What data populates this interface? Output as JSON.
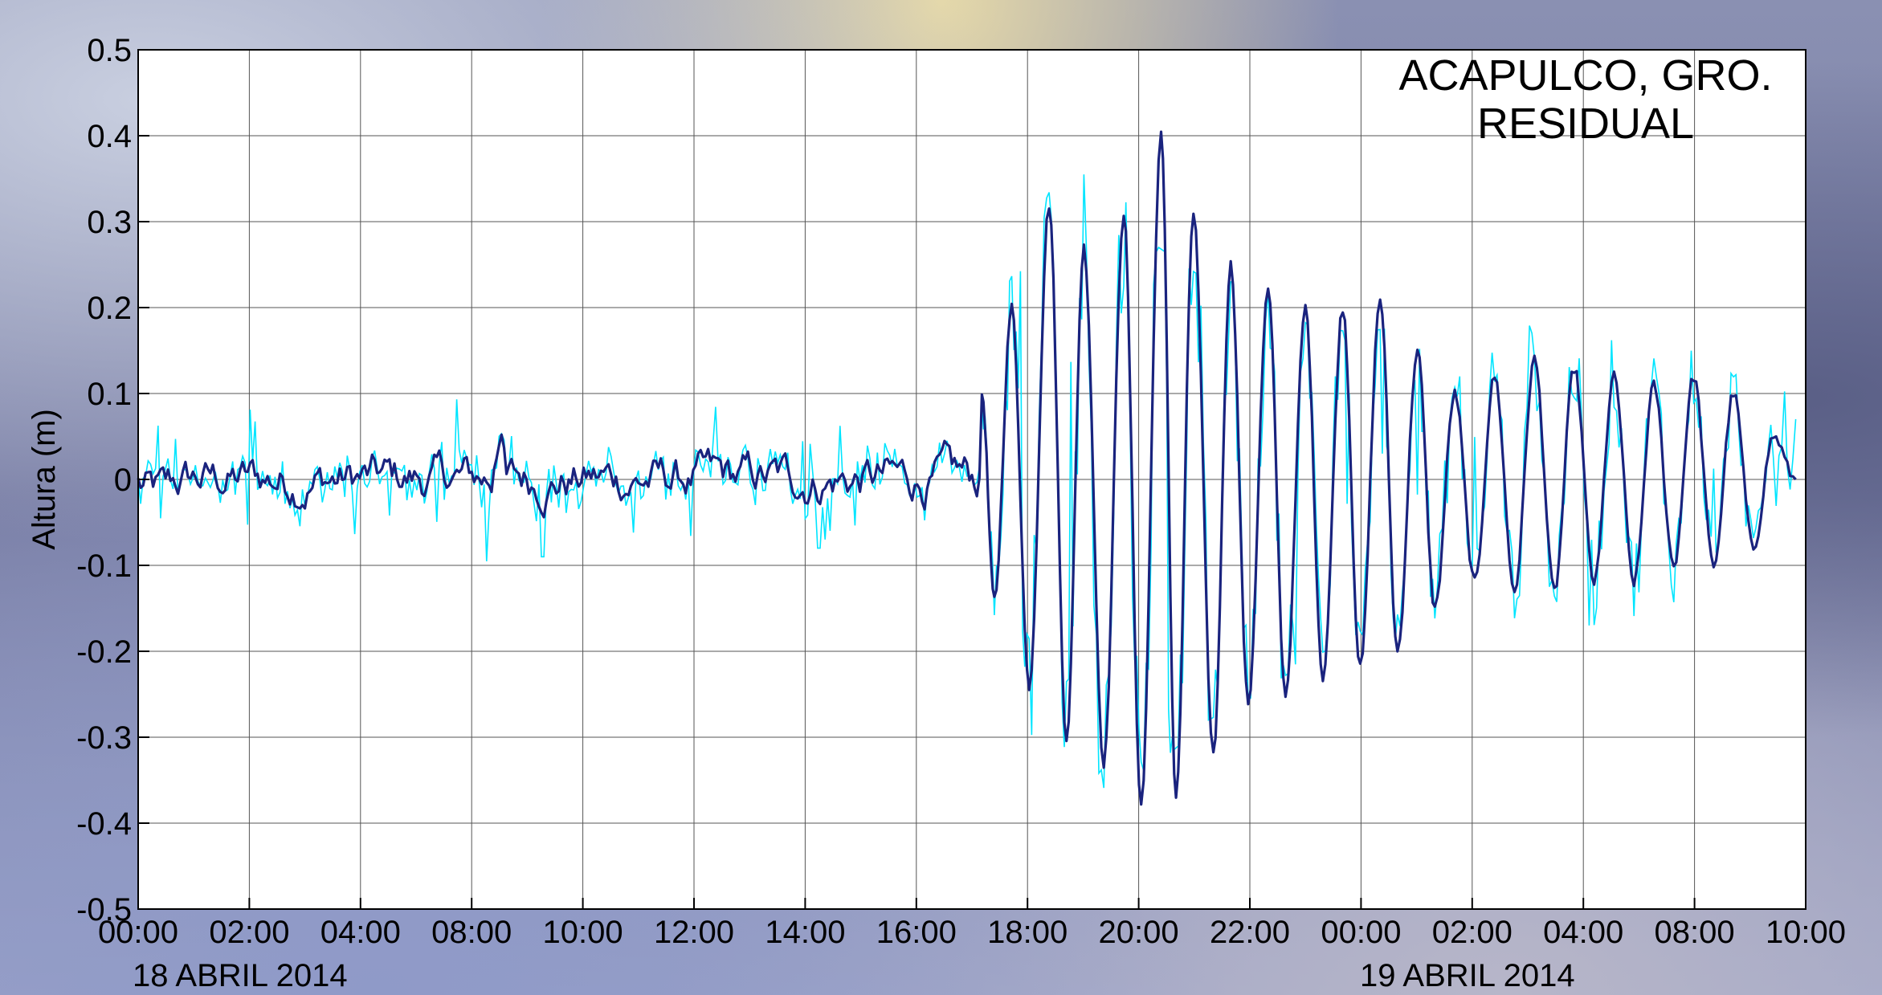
{
  "chart_data": {
    "type": "line",
    "title": "ACAPULCO, GRO.",
    "subtitle": "RESIDUAL",
    "ylabel": "Altura (m)",
    "xlabel": "",
    "ylim": [
      -0.5,
      0.5
    ],
    "yticks": [
      0.5,
      0.4,
      0.3,
      0.2,
      0.1,
      0,
      -0.1,
      -0.2,
      -0.3,
      -0.4,
      -0.5
    ],
    "ytick_labels": [
      "0.5",
      "0.4",
      "0.3",
      "0.2",
      "0.1",
      "0",
      "-0.1",
      "-0.2",
      "-0.3",
      "-0.4",
      "-0.5"
    ],
    "xlim": [
      0,
      33.5
    ],
    "xtick_labels": [
      "00:00",
      "02:00",
      "04:00",
      "08:00",
      "10:00",
      "12:00",
      "14:00",
      "16:00",
      "18:00",
      "20:00",
      "22:00",
      "00:00",
      "02:00",
      "04:00",
      "08:00",
      "10:00"
    ],
    "date_labels": [
      "18 ABRIL 2014",
      "19 ABRIL 2014"
    ],
    "grid": true,
    "colors": {
      "raw": "#00e5ff",
      "filtered": "#1a237e"
    },
    "series": [
      {
        "description": "raw residual",
        "envelope": [
          [
            0,
            0.05,
            -0.06
          ],
          [
            1,
            0.06,
            -0.04
          ],
          [
            2,
            0.06,
            -0.05
          ],
          [
            3,
            0.06,
            -0.07
          ],
          [
            4,
            0.06,
            -0.06
          ],
          [
            5,
            0.06,
            -0.06
          ],
          [
            6,
            0.07,
            -0.07
          ],
          [
            7,
            0.09,
            -0.08
          ],
          [
            8,
            0.12,
            -0.06
          ],
          [
            9,
            0.08,
            -0.06
          ],
          [
            10,
            0.06,
            -0.05
          ],
          [
            11,
            0.06,
            -0.05
          ],
          [
            12,
            0.06,
            -0.05
          ],
          [
            13,
            0.06,
            -0.05
          ],
          [
            14,
            0.06,
            -0.05
          ],
          [
            15,
            0.06,
            -0.05
          ],
          [
            16,
            0.05,
            -0.05
          ],
          [
            16.8,
            0.05,
            -0.04
          ],
          [
            17.5,
            0.2,
            -0.25
          ],
          [
            18.5,
            0.33,
            -0.32
          ],
          [
            19.5,
            0.32,
            -0.33
          ],
          [
            20.5,
            0.24,
            -0.3
          ],
          [
            21.5,
            0.2,
            -0.25
          ],
          [
            22.5,
            0.2,
            -0.22
          ],
          [
            23.5,
            0.15,
            -0.18
          ],
          [
            24.5,
            0.14,
            -0.15
          ],
          [
            25.5,
            0.15,
            -0.16
          ],
          [
            26.5,
            0.16,
            -0.16
          ],
          [
            27.5,
            0.14,
            -0.13
          ],
          [
            28.5,
            0.16,
            -0.14
          ],
          [
            29.5,
            0.14,
            -0.14
          ],
          [
            30.5,
            0.13,
            -0.12
          ],
          [
            31.5,
            0.12,
            -0.1
          ],
          [
            32.5,
            0.1,
            -0.07
          ],
          [
            33.3,
            0.08,
            -0.05
          ]
        ]
      },
      {
        "description": "filtered residual",
        "peaks": [
          [
            16.95,
            0.1
          ],
          [
            17.2,
            -0.14
          ],
          [
            17.55,
            0.2
          ],
          [
            17.9,
            -0.24
          ],
          [
            18.3,
            0.32
          ],
          [
            18.65,
            -0.3
          ],
          [
            19.0,
            0.27
          ],
          [
            19.4,
            -0.33
          ],
          [
            19.8,
            0.31
          ],
          [
            20.15,
            -0.38
          ],
          [
            20.55,
            0.4
          ],
          [
            20.85,
            -0.37
          ],
          [
            21.2,
            0.31
          ],
          [
            21.6,
            -0.32
          ],
          [
            21.95,
            0.25
          ],
          [
            22.3,
            -0.26
          ],
          [
            22.7,
            0.22
          ],
          [
            23.05,
            -0.25
          ],
          [
            23.45,
            0.2
          ],
          [
            23.8,
            -0.23
          ],
          [
            24.2,
            0.2
          ],
          [
            24.55,
            -0.22
          ],
          [
            24.95,
            0.21
          ],
          [
            25.3,
            -0.2
          ],
          [
            25.7,
            0.15
          ],
          [
            26.05,
            -0.15
          ],
          [
            26.45,
            0.1
          ],
          [
            26.85,
            -0.12
          ],
          [
            27.25,
            0.12
          ],
          [
            27.65,
            -0.13
          ],
          [
            28.05,
            0.14
          ],
          [
            28.45,
            -0.13
          ],
          [
            28.85,
            0.13
          ],
          [
            29.25,
            -0.12
          ],
          [
            29.65,
            0.12
          ],
          [
            30.05,
            -0.12
          ],
          [
            30.45,
            0.11
          ],
          [
            30.85,
            -0.1
          ],
          [
            31.25,
            0.12
          ],
          [
            31.65,
            -0.1
          ],
          [
            32.05,
            0.1
          ],
          [
            32.45,
            -0.08
          ],
          [
            32.85,
            0.05
          ],
          [
            33.3,
            0.0
          ]
        ]
      }
    ]
  }
}
